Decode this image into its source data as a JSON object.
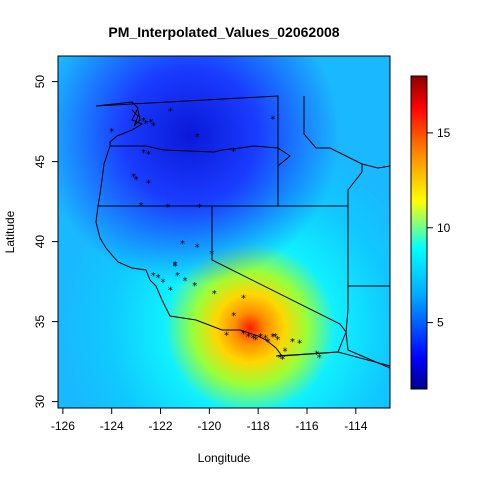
{
  "chart_data": {
    "type": "heatmap",
    "title": "PM_Interpolated_Values_02062008",
    "xlabel": "Longitude",
    "ylabel": "Latitude",
    "xlim": [
      -126.2,
      -112.6
    ],
    "ylim": [
      29.6,
      51.6
    ],
    "x_ticks": [
      -126,
      -124,
      -122,
      -120,
      -118,
      -116,
      -114
    ],
    "y_ticks": [
      30,
      35,
      40,
      45,
      50
    ],
    "colorbar": {
      "range": [
        1.5,
        18
      ],
      "ticks": [
        5,
        10,
        15
      ],
      "colors": [
        "#00008b",
        "#0000ff",
        "#00aaff",
        "#00ffff",
        "#ffff00",
        "#ff8c00",
        "#ff0000",
        "#8b0000"
      ]
    },
    "interpolation_hotspots": [
      {
        "lon": -118.0,
        "lat": 34.2,
        "peak_value": 16
      },
      {
        "lon": -120.3,
        "lat": 46.6,
        "peak_value": 2
      }
    ],
    "monitor_locations": [
      {
        "lon": -122.7,
        "lat": 47.6
      },
      {
        "lon": -122.6,
        "lat": 47.4
      },
      {
        "lon": -122.4,
        "lat": 47.5
      },
      {
        "lon": -122.3,
        "lat": 47.3
      },
      {
        "lon": -121.6,
        "lat": 48.2
      },
      {
        "lon": -124.0,
        "lat": 46.9
      },
      {
        "lon": -117.4,
        "lat": 47.7
      },
      {
        "lon": -120.5,
        "lat": 46.6
      },
      {
        "lon": -122.7,
        "lat": 45.6
      },
      {
        "lon": -122.5,
        "lat": 45.5
      },
      {
        "lon": -119.0,
        "lat": 45.7
      },
      {
        "lon": -123.1,
        "lat": 44.1
      },
      {
        "lon": -123.0,
        "lat": 43.9
      },
      {
        "lon": -122.5,
        "lat": 43.7
      },
      {
        "lon": -122.8,
        "lat": 42.3
      },
      {
        "lon": -121.7,
        "lat": 42.2
      },
      {
        "lon": -120.4,
        "lat": 42.2
      },
      {
        "lon": -121.1,
        "lat": 39.9
      },
      {
        "lon": -120.5,
        "lat": 39.7
      },
      {
        "lon": -119.9,
        "lat": 39.3
      },
      {
        "lon": -121.4,
        "lat": 38.6
      },
      {
        "lon": -121.4,
        "lat": 38.5
      },
      {
        "lon": -122.3,
        "lat": 37.9
      },
      {
        "lon": -122.1,
        "lat": 37.8
      },
      {
        "lon": -121.9,
        "lat": 37.5
      },
      {
        "lon": -121.3,
        "lat": 37.9
      },
      {
        "lon": -121.0,
        "lat": 37.6
      },
      {
        "lon": -121.6,
        "lat": 37.0
      },
      {
        "lon": -120.6,
        "lat": 37.3
      },
      {
        "lon": -119.8,
        "lat": 36.8
      },
      {
        "lon": -118.6,
        "lat": 36.5
      },
      {
        "lon": -119.0,
        "lat": 35.4
      },
      {
        "lon": -119.3,
        "lat": 34.2
      },
      {
        "lon": -118.6,
        "lat": 34.3
      },
      {
        "lon": -118.4,
        "lat": 34.1
      },
      {
        "lon": -118.2,
        "lat": 34.0
      },
      {
        "lon": -118.1,
        "lat": 33.9
      },
      {
        "lon": -117.9,
        "lat": 34.1
      },
      {
        "lon": -117.7,
        "lat": 34.0
      },
      {
        "lon": -117.4,
        "lat": 34.1
      },
      {
        "lon": -117.3,
        "lat": 34.1
      },
      {
        "lon": -117.2,
        "lat": 33.9
      },
      {
        "lon": -117.6,
        "lat": 33.8
      },
      {
        "lon": -116.6,
        "lat": 33.8
      },
      {
        "lon": -116.3,
        "lat": 33.7
      },
      {
        "lon": -117.1,
        "lat": 32.8
      },
      {
        "lon": -117.0,
        "lat": 32.7
      },
      {
        "lon": -115.6,
        "lat": 33.0
      },
      {
        "lon": -115.5,
        "lat": 32.8
      },
      {
        "lon": -116.9,
        "lat": 33.2
      }
    ]
  }
}
